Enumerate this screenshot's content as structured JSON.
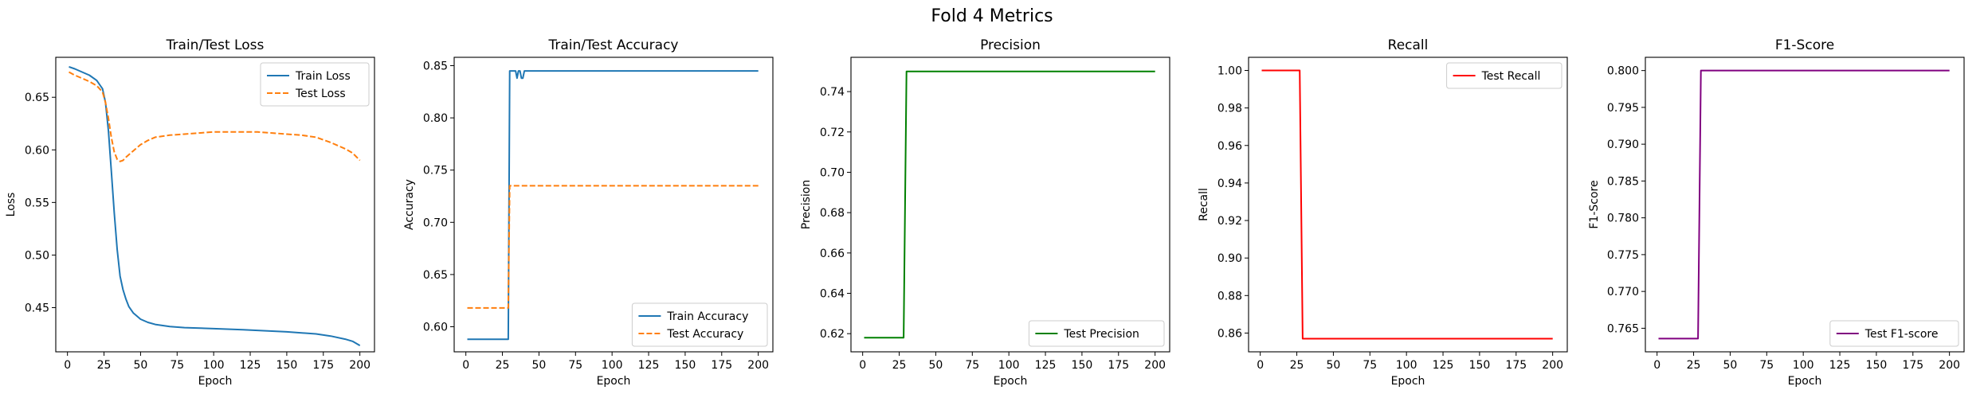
{
  "figure": {
    "title": "Fold 4 Metrics"
  },
  "chart_data": [
    {
      "type": "line",
      "title": "Train/Test Loss",
      "xlabel": "Epoch",
      "ylabel": "Loss",
      "xlim": [
        -8,
        210
      ],
      "ylim": [
        0.408,
        0.688
      ],
      "xticks": [
        0,
        25,
        50,
        75,
        100,
        125,
        150,
        175,
        200
      ],
      "yticks": [
        0.45,
        0.5,
        0.55,
        0.6,
        0.65
      ],
      "ytick_labels": [
        "0.45",
        "0.50",
        "0.55",
        "0.60",
        "0.65"
      ],
      "legend": "top-right",
      "series": [
        {
          "name": "Train Loss",
          "color": "#1f77b4",
          "dash": "solid",
          "x": [
            1,
            5,
            10,
            15,
            20,
            24,
            26,
            28,
            30,
            32,
            34,
            36,
            38,
            40,
            42,
            45,
            50,
            55,
            60,
            70,
            80,
            100,
            120,
            150,
            170,
            180,
            190,
            195,
            200
          ],
          "y": [
            0.679,
            0.677,
            0.674,
            0.671,
            0.666,
            0.658,
            0.645,
            0.618,
            0.58,
            0.54,
            0.505,
            0.48,
            0.467,
            0.458,
            0.451,
            0.445,
            0.439,
            0.436,
            0.434,
            0.432,
            0.431,
            0.43,
            0.429,
            0.427,
            0.425,
            0.423,
            0.42,
            0.418,
            0.414
          ]
        },
        {
          "name": "Test Loss",
          "color": "#ff7f0e",
          "dash": "dashed",
          "x": [
            1,
            5,
            10,
            15,
            20,
            24,
            26,
            28,
            30,
            32,
            34,
            36,
            38,
            40,
            45,
            50,
            55,
            60,
            70,
            80,
            90,
            100,
            110,
            120,
            130,
            140,
            150,
            160,
            170,
            180,
            190,
            195,
            200
          ],
          "y": [
            0.674,
            0.671,
            0.668,
            0.665,
            0.661,
            0.655,
            0.645,
            0.63,
            0.612,
            0.598,
            0.591,
            0.589,
            0.59,
            0.593,
            0.599,
            0.605,
            0.609,
            0.612,
            0.614,
            0.615,
            0.616,
            0.617,
            0.617,
            0.617,
            0.617,
            0.616,
            0.615,
            0.614,
            0.612,
            0.607,
            0.601,
            0.597,
            0.59
          ]
        }
      ]
    },
    {
      "type": "line",
      "title": "Train/Test Accuracy",
      "xlabel": "Epoch",
      "ylabel": "Accuracy",
      "xlim": [
        -8,
        210
      ],
      "ylim": [
        0.576,
        0.858
      ],
      "xticks": [
        0,
        25,
        50,
        75,
        100,
        125,
        150,
        175,
        200
      ],
      "yticks": [
        0.6,
        0.65,
        0.7,
        0.75,
        0.8,
        0.85
      ],
      "ytick_labels": [
        "0.60",
        "0.65",
        "0.70",
        "0.75",
        "0.80",
        "0.85"
      ],
      "legend": "bottom-right",
      "series": [
        {
          "name": "Train Accuracy",
          "color": "#1f77b4",
          "dash": "solid",
          "x": [
            1,
            29,
            30,
            34,
            35,
            36,
            37,
            38,
            39,
            40,
            41,
            200
          ],
          "y": [
            0.588,
            0.588,
            0.845,
            0.845,
            0.838,
            0.845,
            0.845,
            0.838,
            0.838,
            0.845,
            0.845,
            0.845
          ]
        },
        {
          "name": "Test Accuracy",
          "color": "#ff7f0e",
          "dash": "dashed",
          "x": [
            1,
            29,
            30,
            200
          ],
          "y": [
            0.618,
            0.618,
            0.735,
            0.735
          ]
        }
      ]
    },
    {
      "type": "line",
      "title": "Precision",
      "xlabel": "Epoch",
      "ylabel": "Precision",
      "xlim": [
        -8,
        210
      ],
      "ylim": [
        0.611,
        0.757
      ],
      "xticks": [
        0,
        25,
        50,
        75,
        100,
        125,
        150,
        175,
        200
      ],
      "yticks": [
        0.62,
        0.64,
        0.66,
        0.68,
        0.7,
        0.72,
        0.74
      ],
      "ytick_labels": [
        "0.62",
        "0.64",
        "0.66",
        "0.68",
        "0.70",
        "0.72",
        "0.74"
      ],
      "legend": "bottom-right",
      "series": [
        {
          "name": "Test Precision",
          "color": "#008000",
          "dash": "solid",
          "x": [
            1,
            28,
            30,
            200
          ],
          "y": [
            0.618,
            0.618,
            0.75,
            0.75
          ]
        }
      ]
    },
    {
      "type": "line",
      "title": "Recall",
      "xlabel": "Epoch",
      "ylabel": "Recall",
      "xlim": [
        -8,
        210
      ],
      "ylim": [
        0.85,
        1.007
      ],
      "xticks": [
        0,
        25,
        50,
        75,
        100,
        125,
        150,
        175,
        200
      ],
      "yticks": [
        0.86,
        0.88,
        0.9,
        0.92,
        0.94,
        0.96,
        0.98,
        1.0
      ],
      "ytick_labels": [
        "0.86",
        "0.88",
        "0.90",
        "0.92",
        "0.94",
        "0.96",
        "0.98",
        "1.00"
      ],
      "legend": "top-right",
      "series": [
        {
          "name": "Test Recall",
          "color": "#ff0000",
          "dash": "solid",
          "x": [
            1,
            27,
            29,
            200
          ],
          "y": [
            1.0,
            1.0,
            0.857,
            0.857
          ]
        }
      ]
    },
    {
      "type": "line",
      "title": "F1-Score",
      "xlabel": "Epoch",
      "ylabel": "F1-Score",
      "xlim": [
        -8,
        210
      ],
      "ylim": [
        0.7618,
        0.8018
      ],
      "xticks": [
        0,
        25,
        50,
        75,
        100,
        125,
        150,
        175,
        200
      ],
      "yticks": [
        0.765,
        0.77,
        0.775,
        0.78,
        0.785,
        0.79,
        0.795,
        0.8
      ],
      "ytick_labels": [
        "0.765",
        "0.770",
        "0.775",
        "0.780",
        "0.785",
        "0.790",
        "0.795",
        "0.800"
      ],
      "legend": "bottom-right",
      "series": [
        {
          "name": "Test F1-score",
          "color": "#800080",
          "dash": "solid",
          "x": [
            1,
            28,
            30,
            200
          ],
          "y": [
            0.7636,
            0.7636,
            0.8,
            0.8
          ]
        }
      ]
    }
  ]
}
